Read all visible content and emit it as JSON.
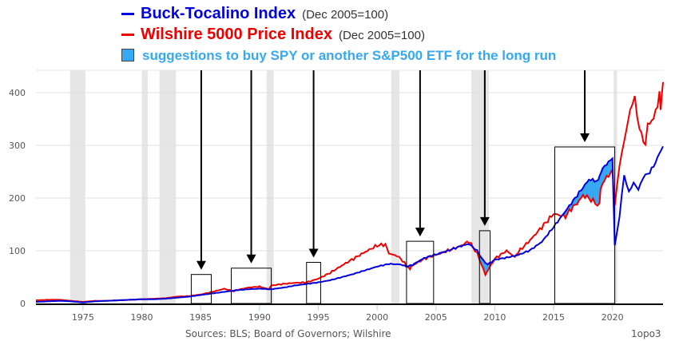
{
  "legend": {
    "buck": {
      "label": "Buck-Tocalino Index",
      "note": "(Dec 2005=100)",
      "color": "#0000e0"
    },
    "wilshire": {
      "label": "Wilshire 5000 Price Index",
      "note": "(Dec 2005=100)",
      "color": "#ee0000"
    },
    "suggestion": {
      "label": "suggestions to buy SPY or another S&P500 ETF for the long run",
      "color": "#36a8f4"
    }
  },
  "footer": {
    "source": "Sources: BLS; Board of Governors; Wilshire",
    "watermark": "1opo3"
  },
  "chart_data": {
    "type": "line",
    "title": "",
    "xlabel": "",
    "ylabel": "",
    "xlim": [
      1971,
      2024.3
    ],
    "ylim": [
      0,
      440
    ],
    "x_ticks": [
      1975,
      1980,
      1985,
      1990,
      1995,
      2000,
      2005,
      2010,
      2015,
      2020
    ],
    "y_ticks": [
      0,
      100,
      200,
      300,
      400
    ],
    "grid": "horizontal",
    "legend_position": "top",
    "recessions": [
      [
        1973.9,
        1975.2
      ],
      [
        1980.0,
        1980.5
      ],
      [
        1981.5,
        1982.9
      ],
      [
        1990.6,
        1991.2
      ],
      [
        2001.2,
        2001.9
      ],
      [
        2008.0,
        2009.5
      ],
      [
        2020.1,
        2020.4
      ]
    ],
    "suggestion_boxes": [
      {
        "x": [
          1984.2,
          1985.9
        ],
        "ytop": 55
      },
      {
        "x": [
          1987.6,
          1991.0
        ],
        "ytop": 67
      },
      {
        "x": [
          1994.0,
          1995.2
        ],
        "ytop": 78
      },
      {
        "x": [
          2002.5,
          2004.8
        ],
        "ytop": 118
      },
      {
        "x": [
          2008.7,
          2009.6
        ],
        "ytop": 138
      },
      {
        "x": [
          2015.1,
          2020.2
        ],
        "ytop": 297
      }
    ],
    "series": [
      {
        "name": "Buck-Tocalino Index",
        "color": "#0000e0",
        "x": [
          1971,
          1972,
          1973,
          1974,
          1975,
          1976,
          1977,
          1978,
          1979,
          1980,
          1981,
          1982,
          1983,
          1984,
          1985,
          1986,
          1987,
          1988,
          1989,
          1990,
          1991,
          1992,
          1993,
          1994,
          1995,
          1996,
          1997,
          1998,
          1999,
          2000,
          2001,
          2002,
          2002.5,
          2003,
          2003.5,
          2004,
          2004.5,
          2005,
          2006,
          2007,
          2007.8,
          2008.5,
          2009,
          2009.4,
          2010,
          2011,
          2012,
          2013,
          2014,
          2015,
          2016,
          2016.5,
          2017,
          2017.5,
          2018,
          2018.8,
          2019,
          2019.5,
          2020.0,
          2020.2,
          2020.6,
          2021,
          2021.4,
          2021.8,
          2022.2,
          2022.6,
          2023,
          2023.5,
          2024,
          2024.3
        ],
        "values": [
          3,
          4,
          5,
          4,
          2,
          4,
          5,
          6,
          7,
          8,
          8,
          9,
          11,
          13,
          16,
          19,
          22,
          25,
          27,
          28,
          27,
          30,
          34,
          37,
          40,
          44,
          50,
          56,
          63,
          70,
          75,
          74,
          70,
          73,
          80,
          86,
          90,
          93,
          100,
          108,
          113,
          100,
          82,
          74,
          83,
          87,
          92,
          101,
          117,
          145,
          175,
          190,
          205,
          220,
          235,
          232,
          250,
          265,
          275,
          110,
          165,
          245,
          210,
          230,
          215,
          240,
          245,
          260,
          285,
          298
        ]
      },
      {
        "name": "Wilshire 5000 Price Index",
        "color": "#ee0000",
        "x": [
          1971,
          1972,
          1973,
          1974,
          1975,
          1976,
          1977,
          1978,
          1979,
          1980,
          1981,
          1982,
          1983,
          1984,
          1985,
          1986,
          1987,
          1987.8,
          1988,
          1989,
          1990,
          1990.8,
          1991,
          1992,
          1993,
          1994,
          1995,
          1996,
          1997,
          1998,
          1999,
          2000,
          2000.7,
          2001,
          2001.7,
          2002,
          2002.8,
          2003,
          2004,
          2005,
          2006,
          2007,
          2007.8,
          2008.5,
          2009.2,
          2010,
          2011,
          2011.7,
          2012,
          2013,
          2014,
          2015,
          2016,
          2016.5,
          2017,
          2017.5,
          2018,
          2018.9,
          2019,
          2019.5,
          2020.0,
          2020.2,
          2020.6,
          2021,
          2021.5,
          2021.9,
          2022.3,
          2022.8,
          2023,
          2023.5,
          2024,
          2024.1,
          2024.3
        ],
        "values": [
          6,
          7,
          7,
          5,
          3,
          5,
          5,
          6,
          7,
          8,
          9,
          10,
          13,
          14,
          17,
          22,
          28,
          23,
          25,
          30,
          32,
          27,
          34,
          37,
          39,
          40,
          47,
          58,
          72,
          85,
          98,
          110,
          112,
          95,
          90,
          85,
          65,
          72,
          85,
          92,
          100,
          108,
          118,
          95,
          55,
          85,
          100,
          88,
          98,
          120,
          145,
          170,
          165,
          180,
          190,
          205,
          200,
          185,
          220,
          240,
          250,
          190,
          260,
          310,
          365,
          390,
          330,
          300,
          340,
          350,
          395,
          370,
          420
        ]
      }
    ]
  }
}
